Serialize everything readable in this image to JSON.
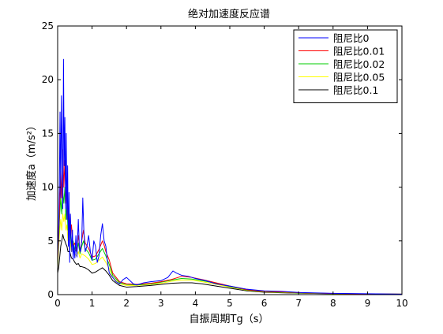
{
  "chart_data": {
    "type": "line",
    "title": "绝对加速度反应谱",
    "xlabel": "自振周期Tg（s）",
    "ylabel": "加速度a（m/s²）",
    "xlim": [
      0,
      10
    ],
    "ylim": [
      0,
      25
    ],
    "xticks": [
      0,
      1,
      2,
      3,
      4,
      5,
      6,
      7,
      8,
      9,
      10
    ],
    "yticks": [
      0,
      5,
      10,
      15,
      20,
      25
    ],
    "grid": false,
    "legend_position": "top-right",
    "series": [
      {
        "name": "阻尼比0",
        "color": "#0000ff",
        "x": [
          0,
          0.03,
          0.05,
          0.07,
          0.09,
          0.11,
          0.13,
          0.15,
          0.17,
          0.19,
          0.21,
          0.23,
          0.25,
          0.27,
          0.29,
          0.31,
          0.33,
          0.35,
          0.37,
          0.39,
          0.41,
          0.43,
          0.45,
          0.47,
          0.5,
          0.53,
          0.56,
          0.6,
          0.63,
          0.66,
          0.7,
          0.73,
          0.76,
          0.8,
          0.85,
          0.9,
          0.95,
          1.0,
          1.05,
          1.1,
          1.15,
          1.2,
          1.25,
          1.3,
          1.35,
          1.4,
          1.45,
          1.5,
          1.6,
          1.7,
          1.8,
          1.9,
          2.0,
          2.1,
          2.2,
          2.3,
          2.5,
          2.7,
          3.0,
          3.2,
          3.35,
          3.45,
          3.6,
          3.8,
          4.0,
          4.3,
          4.6,
          5.0,
          5.5,
          6.0,
          6.5,
          7.0,
          8.0,
          9.0,
          10.0
        ],
        "y": [
          3.5,
          6.5,
          10,
          17,
          9,
          18.5,
          14,
          8,
          21.9,
          12,
          16.5,
          8,
          15,
          7,
          12,
          4.5,
          9.5,
          3,
          7.5,
          5.5,
          4,
          6,
          3.3,
          4.6,
          3.4,
          5.5,
          3.5,
          7,
          4.5,
          4,
          5,
          9,
          6,
          4,
          4.5,
          5.5,
          4,
          3.2,
          5,
          4.5,
          3,
          3.6,
          5.5,
          6.6,
          5,
          4.5,
          3,
          2,
          1.6,
          1.2,
          1.0,
          1.4,
          1.6,
          1.3,
          1.0,
          0.9,
          1.1,
          1.2,
          1.3,
          1.6,
          2.2,
          2.0,
          1.8,
          1.7,
          1.5,
          1.3,
          1.0,
          0.8,
          0.5,
          0.35,
          0.3,
          0.2,
          0.12,
          0.08,
          0.05
        ]
      },
      {
        "name": "阻尼比0.01",
        "color": "#ff0000",
        "x": [
          0,
          0.03,
          0.06,
          0.09,
          0.12,
          0.15,
          0.18,
          0.21,
          0.24,
          0.27,
          0.3,
          0.33,
          0.36,
          0.4,
          0.45,
          0.5,
          0.55,
          0.6,
          0.65,
          0.7,
          0.75,
          0.8,
          0.9,
          1.0,
          1.1,
          1.2,
          1.3,
          1.35,
          1.4,
          1.5,
          1.6,
          1.8,
          2.0,
          2.3,
          2.7,
          3.0,
          3.3,
          3.6,
          3.9,
          4.2,
          4.6,
          5.0,
          5.5,
          6.0,
          6.5,
          7.0,
          8.0,
          9.0,
          10.0
        ],
        "y": [
          3.0,
          5.5,
          8.5,
          11.5,
          9,
          13.5,
          10,
          12.5,
          8.5,
          10.5,
          7,
          8,
          5.5,
          6.5,
          4.5,
          4.8,
          4,
          5.5,
          4,
          5,
          6,
          4.8,
          4.3,
          3.5,
          3.6,
          4.2,
          5.0,
          4.6,
          4.0,
          3.2,
          2.0,
          1.2,
          1.0,
          0.95,
          1.05,
          1.2,
          1.4,
          1.7,
          1.6,
          1.4,
          1.1,
          0.8,
          0.45,
          0.3,
          0.25,
          0.18,
          0.1,
          0.06,
          0.05
        ]
      },
      {
        "name": "阻尼比0.02",
        "color": "#00cc00",
        "x": [
          0,
          0.03,
          0.06,
          0.09,
          0.12,
          0.15,
          0.18,
          0.21,
          0.24,
          0.27,
          0.3,
          0.35,
          0.4,
          0.45,
          0.5,
          0.55,
          0.6,
          0.65,
          0.7,
          0.75,
          0.8,
          0.9,
          1.0,
          1.1,
          1.2,
          1.3,
          1.4,
          1.5,
          1.6,
          1.8,
          2.0,
          2.3,
          2.7,
          3.0,
          3.3,
          3.6,
          3.9,
          4.2,
          4.6,
          5.0,
          5.5,
          6.0,
          6.5,
          7.0,
          8.0,
          9.0,
          10.0
        ],
        "y": [
          2.8,
          5.0,
          7.5,
          9.0,
          7.5,
          9.5,
          8.5,
          10.0,
          7.0,
          8.5,
          6.0,
          6.5,
          4.5,
          5.0,
          4.2,
          4.0,
          4.8,
          3.8,
          4.5,
          5.0,
          4.3,
          3.9,
          3.2,
          3.3,
          3.8,
          4.3,
          3.6,
          2.8,
          1.8,
          1.1,
          0.95,
          0.9,
          1.0,
          1.15,
          1.35,
          1.5,
          1.45,
          1.3,
          1.05,
          0.75,
          0.42,
          0.28,
          0.22,
          0.16,
          0.09,
          0.06,
          0.05
        ]
      },
      {
        "name": "阻尼比0.05",
        "color": "#ffff00",
        "x": [
          0,
          0.03,
          0.06,
          0.09,
          0.12,
          0.15,
          0.18,
          0.21,
          0.24,
          0.27,
          0.3,
          0.35,
          0.4,
          0.45,
          0.5,
          0.55,
          0.6,
          0.65,
          0.7,
          0.8,
          0.9,
          1.0,
          1.1,
          1.2,
          1.3,
          1.4,
          1.5,
          1.6,
          1.8,
          2.0,
          2.3,
          2.7,
          3.0,
          3.3,
          3.6,
          3.9,
          4.2,
          4.6,
          5.0,
          5.5,
          6.0,
          6.5,
          7.0,
          8.0,
          9.0,
          10.0
        ],
        "y": [
          2.5,
          4.5,
          6.0,
          7.0,
          6.0,
          7.5,
          6.8,
          7.5,
          6.0,
          6.5,
          5.0,
          5.2,
          4.0,
          4.3,
          3.8,
          3.6,
          4.0,
          3.4,
          3.8,
          3.6,
          3.3,
          2.8,
          2.9,
          3.2,
          3.5,
          3.0,
          2.4,
          1.6,
          1.0,
          0.85,
          0.85,
          0.95,
          1.05,
          1.25,
          1.35,
          1.35,
          1.2,
          0.95,
          0.7,
          0.4,
          0.26,
          0.2,
          0.15,
          0.09,
          0.06,
          0.05
        ]
      },
      {
        "name": "阻尼比0.1",
        "color": "#000000",
        "x": [
          0,
          0.03,
          0.06,
          0.09,
          0.12,
          0.15,
          0.18,
          0.21,
          0.24,
          0.27,
          0.3,
          0.35,
          0.4,
          0.45,
          0.5,
          0.55,
          0.6,
          0.65,
          0.7,
          0.8,
          0.9,
          1.0,
          1.1,
          1.2,
          1.3,
          1.4,
          1.5,
          1.6,
          1.8,
          2.0,
          2.3,
          2.7,
          3.0,
          3.3,
          3.6,
          3.9,
          4.2,
          4.6,
          5.0,
          5.5,
          6.0,
          6.5,
          7.0,
          8.0,
          9.0,
          10.0
        ],
        "y": [
          2.0,
          2.5,
          3.5,
          4.5,
          5.0,
          5.6,
          5.2,
          5.0,
          4.7,
          4.5,
          4.0,
          4.0,
          3.4,
          3.3,
          3.0,
          2.8,
          2.9,
          2.6,
          2.6,
          2.5,
          2.3,
          2.0,
          2.1,
          2.3,
          2.5,
          2.2,
          1.8,
          1.3,
          0.85,
          0.7,
          0.75,
          0.85,
          0.95,
          1.05,
          1.1,
          1.1,
          1.0,
          0.8,
          0.6,
          0.35,
          0.22,
          0.17,
          0.13,
          0.08,
          0.05,
          0.04
        ]
      }
    ]
  }
}
